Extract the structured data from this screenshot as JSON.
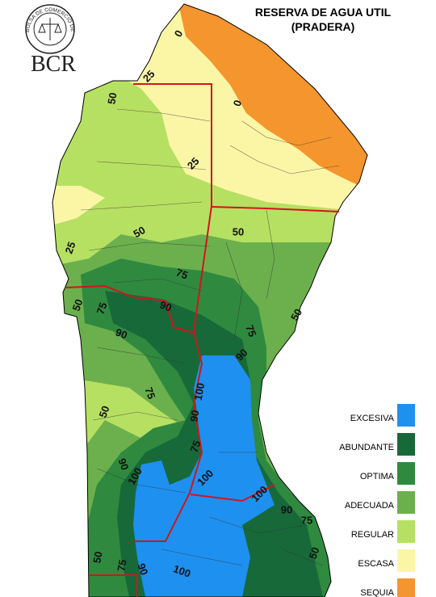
{
  "logo": {
    "seal_text": "BOLSA DE COMERCIO DE ROSARIO",
    "name": "BCR"
  },
  "title": [
    "RESERVA DE AGUA UTIL",
    "(PRADERA)"
  ],
  "legend": [
    {
      "label": "EXCESIVA",
      "color": "#1e90f0"
    },
    {
      "label": "ABUNDANTE",
      "color": "#17693a"
    },
    {
      "label": "OPTIMA",
      "color": "#2f8a3f"
    },
    {
      "label": "ADECUADA",
      "color": "#6cb04e"
    },
    {
      "label": "REGULAR",
      "color": "#b6e062"
    },
    {
      "label": "ESCASA",
      "color": "#fbf6a6"
    },
    {
      "label": "SEQUIA",
      "color": "#f5952e"
    }
  ],
  "contour_labels": [
    0,
    25,
    0,
    50,
    25,
    25,
    50,
    50,
    75,
    50,
    75,
    90,
    75,
    50,
    90,
    90,
    100,
    75,
    50,
    90,
    75,
    90,
    100,
    100,
    100,
    90,
    75,
    50,
    50,
    75,
    90,
    100
  ]
}
